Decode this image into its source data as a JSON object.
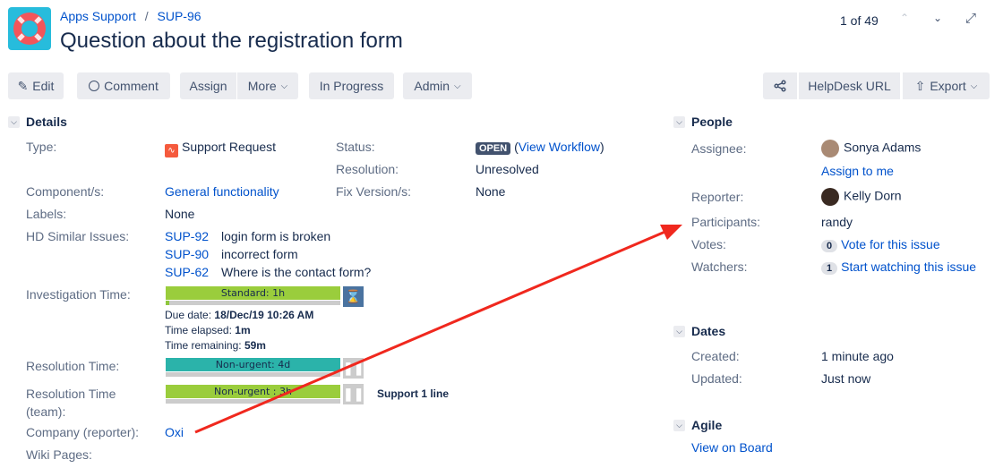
{
  "header": {
    "breadcrumb_project": "Apps Support",
    "breadcrumb_sep": "/",
    "breadcrumb_issue": "SUP-96",
    "title": "Question about the registration form",
    "pager": "1 of 49"
  },
  "toolbar": {
    "edit": "Edit",
    "comment": "Comment",
    "assign": "Assign",
    "more": "More",
    "in_progress": "In Progress",
    "admin": "Admin",
    "helpdesk_url": "HelpDesk URL",
    "export": "Export"
  },
  "details": {
    "title": "Details",
    "type_label": "Type:",
    "type_value": "Support Request",
    "status_label": "Status:",
    "status_value": "OPEN",
    "view_workflow": "View Workflow",
    "resolution_label": "Resolution:",
    "resolution_value": "Unresolved",
    "component_label": "Component/s:",
    "component_value": "General functionality",
    "fixversion_label": "Fix Version/s:",
    "fixversion_value": "None",
    "labels_label": "Labels:",
    "labels_value": "None",
    "similar_label": "HD Similar Issues:",
    "similar": [
      {
        "key": "SUP-92",
        "summary": "login form is broken"
      },
      {
        "key": "SUP-90",
        "summary": "incorrect form"
      },
      {
        "key": "SUP-62",
        "summary": "Where is the contact form?"
      }
    ],
    "investigation_label": "Investigation Time:",
    "investigation_bar": "Standard: 1h",
    "investigation_progress": 0.02,
    "due_label": "Due date:",
    "due_value": "18/Dec/19 10:26 AM",
    "elapsed_label": "Time elapsed:",
    "elapsed_value": "1m",
    "remaining_label": "Time remaining:",
    "remaining_value": "59m",
    "resolution_time_label": "Resolution Time:",
    "resolution_time_bar": "Non-urgent: 4d",
    "resolution_time_progress": 0,
    "resolution_team_label": "Resolution Time",
    "resolution_team_label2": "(team):",
    "resolution_team_bar": "Non-urgent : 3h",
    "resolution_team_progress": 0,
    "resolution_team_note": "Support 1 line",
    "company_label": "Company (reporter):",
    "company_value": "Oxi",
    "wiki_label": "Wiki Pages:"
  },
  "people": {
    "title": "People",
    "assignee_label": "Assignee:",
    "assignee": "Sonya Adams",
    "assign_to_me": "Assign to me",
    "reporter_label": "Reporter:",
    "reporter": "Kelly Dorn",
    "participants_label": "Participants:",
    "participants": "randy",
    "votes_label": "Votes:",
    "votes_count": "0",
    "vote_link": "Vote for this issue",
    "watchers_label": "Watchers:",
    "watchers_count": "1",
    "watch_link": "Start watching this issue"
  },
  "dates": {
    "title": "Dates",
    "created_label": "Created:",
    "created": "1 minute ago",
    "updated_label": "Updated:",
    "updated": "Just now"
  },
  "agile": {
    "title": "Agile",
    "view_on_board": "View on Board"
  },
  "colors": {
    "green_bar": "#9acd3c",
    "teal_bar": "#2bb3aa",
    "annotation_arrow": "#f0281e",
    "status_badge": "#42526e",
    "link": "#0052cc"
  }
}
